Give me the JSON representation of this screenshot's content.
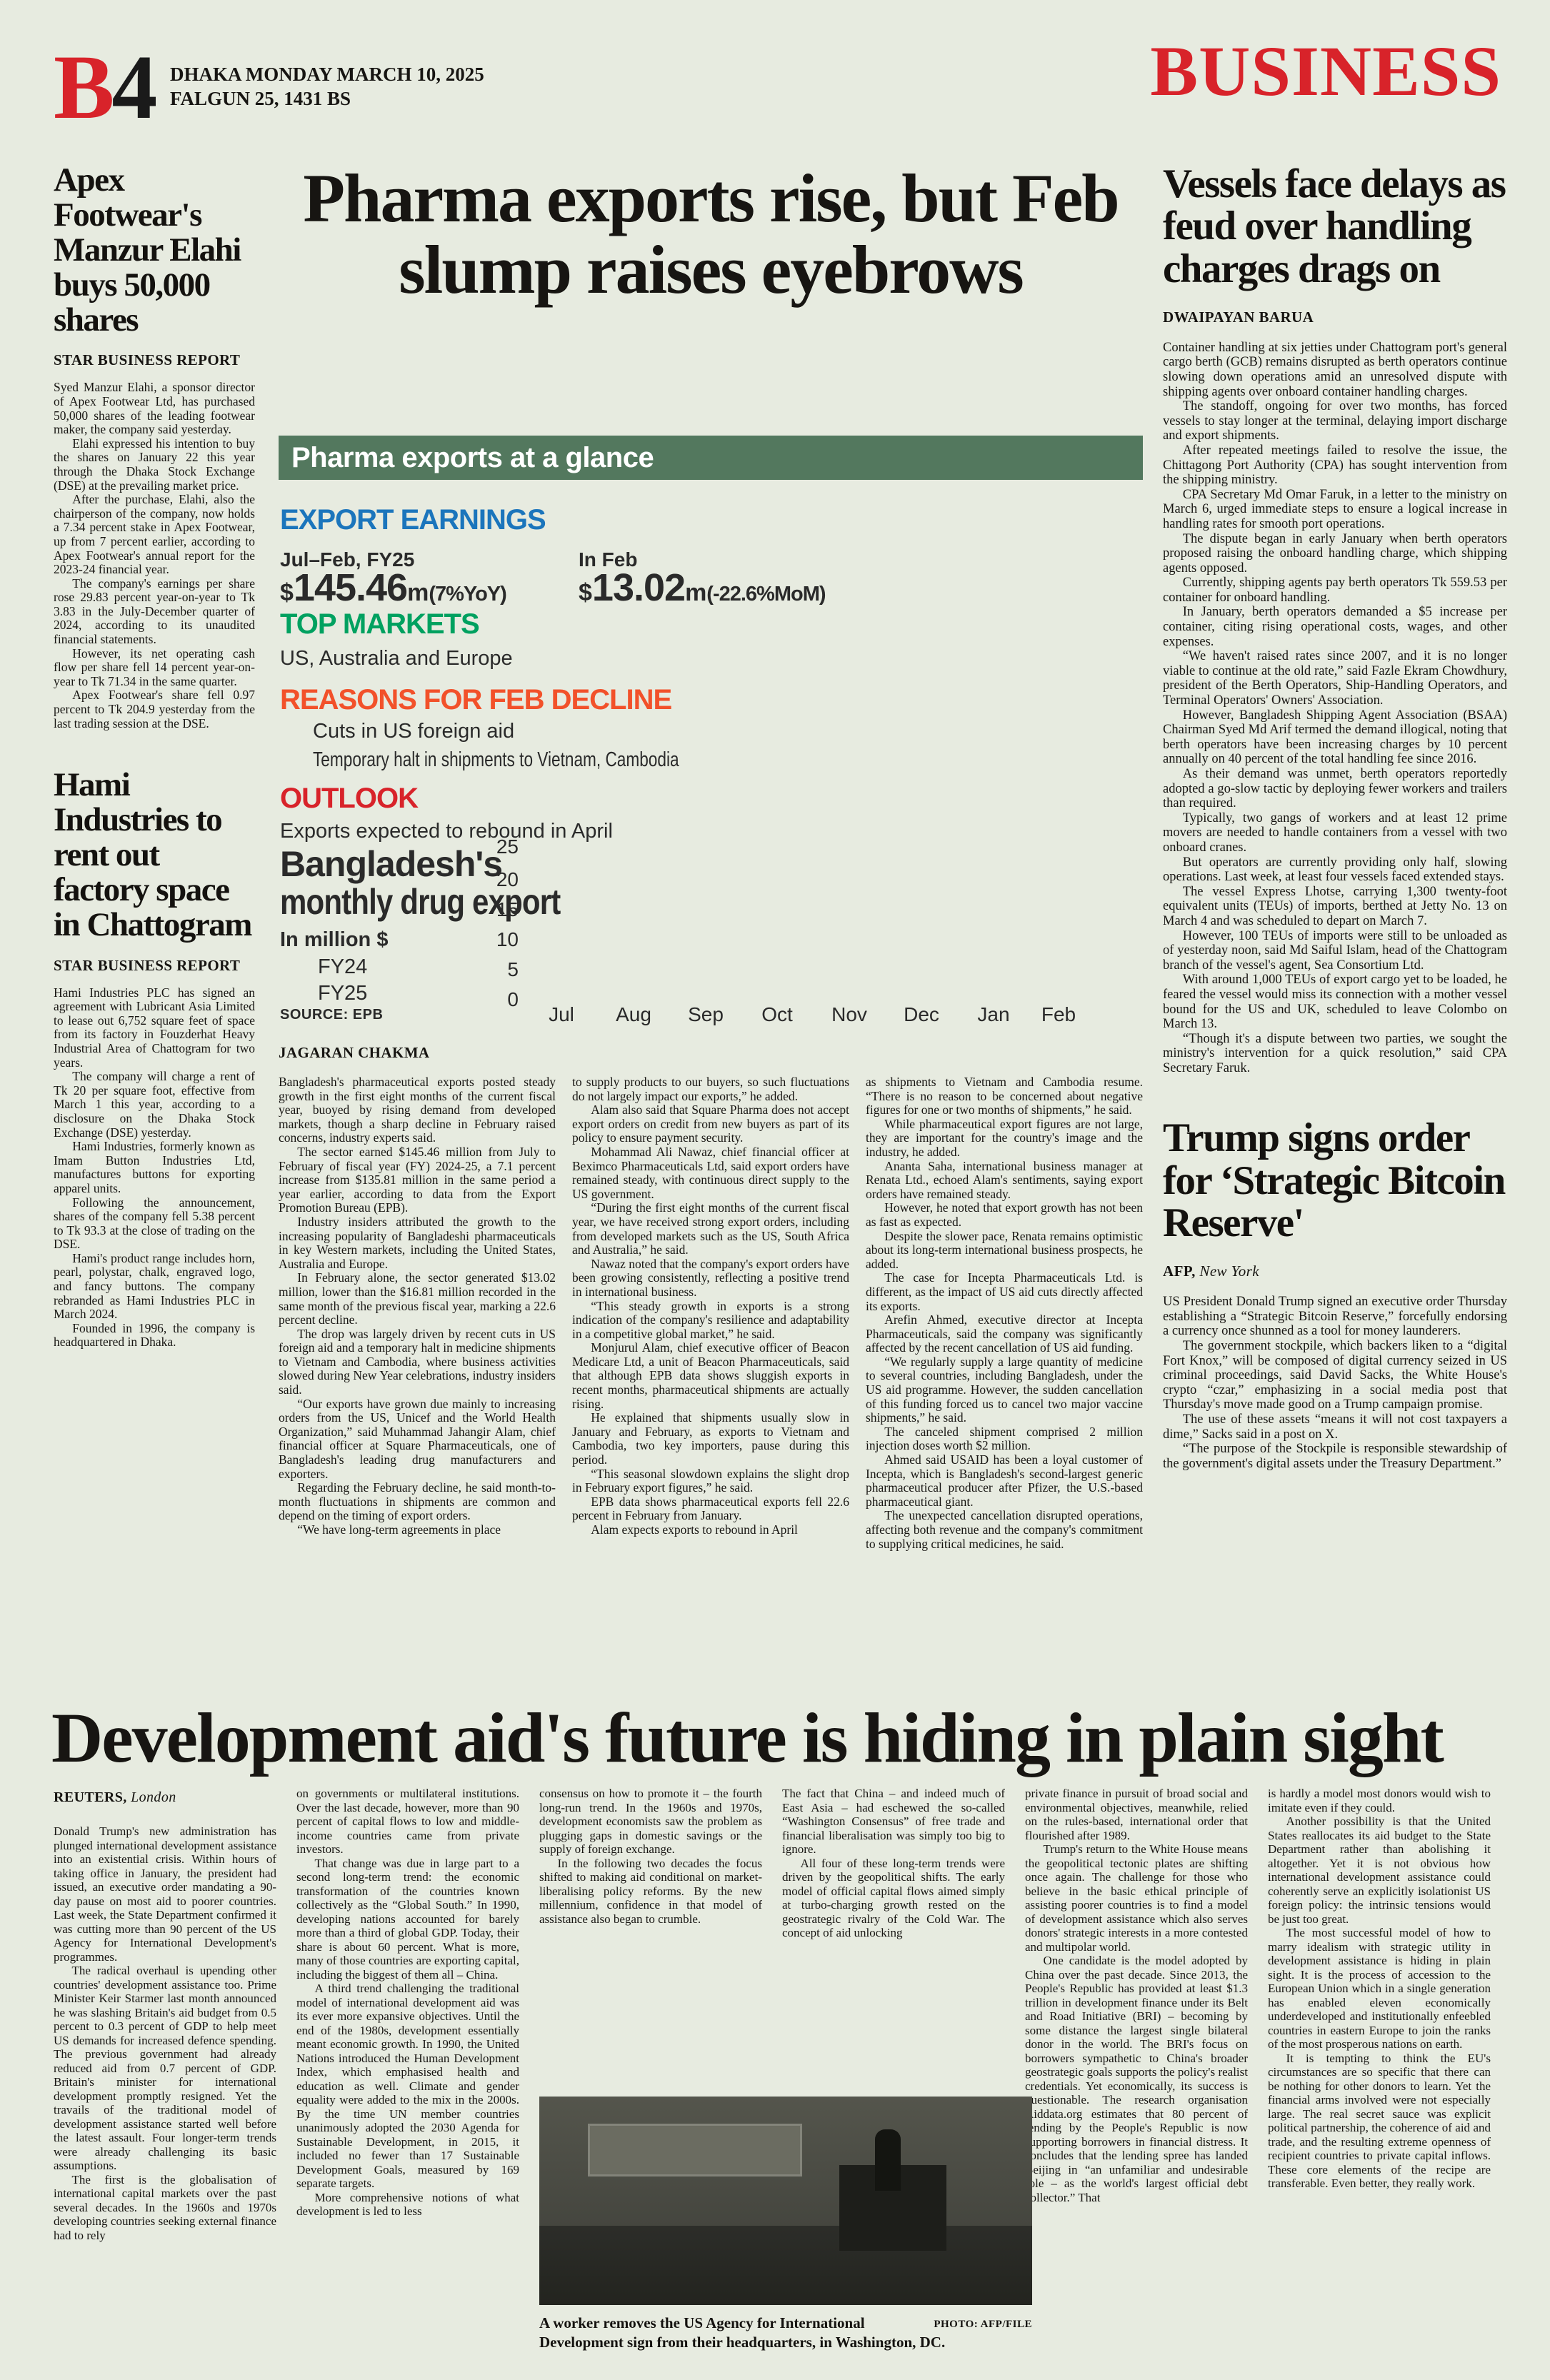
{
  "page": {
    "edition_letter": "B",
    "edition_number": "4",
    "dateline_line1": "DHAKA MONDAY MARCH 10, 2025",
    "dateline_line2": "FALGUN 25, 1431 BS",
    "section": "BUSINESS"
  },
  "apex": {
    "headline": "Apex Footwear's Manzur Elahi buys 50,000 shares",
    "byline": "STAR BUSINESS REPORT",
    "paragraphs": [
      "Syed Manzur Elahi, a sponsor director of Apex Footwear Ltd, has purchased 50,000 shares of the leading footwear maker, the company said yesterday.",
      "Elahi expressed his intention to buy the shares on January 22 this year through the Dhaka Stock Exchange (DSE) at the prevailing market price.",
      "After the purchase, Elahi, also the chairperson of the company, now holds a 7.34 percent stake in Apex Footwear, up from 7 percent earlier, according to Apex Footwear's annual report for the 2023-24 financial year.",
      "The company's earnings per share rose 29.83 percent year-on-year to Tk 3.83 in the July-December quarter of 2024, according to its unaudited financial statements.",
      "However, its net operating cash flow per share fell 14 percent year-on-year to Tk 71.34 in the same quarter.",
      "Apex Footwear's share fell 0.97 percent to Tk 204.9 yesterday from the last trading session at the DSE."
    ]
  },
  "hami": {
    "headline": "Hami Industries to rent out factory space in Chattogram",
    "byline": "STAR BUSINESS REPORT",
    "paragraphs": [
      "Hami Industries PLC has signed an agreement with Lubricant Asia Limited to lease out 6,752 square feet of space from its factory in Fouzderhat Heavy Industrial Area of Chattogram for two years.",
      "The company will charge a rent of Tk 20 per square foot, effective from March 1 this year, according to a disclosure on the Dhaka Stock Exchange (DSE) yesterday.",
      "Hami Industries, formerly known as Imam Button Industries Ltd, manufactures buttons for exporting apparel units.",
      "Following the announcement, shares of the company fell 5.38 percent to Tk 93.3 at the close of trading on the DSE.",
      "Hami's product range includes horn, pearl, polystar, chalk, engraved logo, and fancy buttons. The company rebranded as Hami Industries PLC in March 2024.",
      "Founded in 1996, the company is headquartered in Dhaka."
    ]
  },
  "pharma": {
    "headline": "Pharma exports rise, but Feb slump raises eyebrows",
    "byline": "JAGARAN CHAKMA",
    "col1": [
      "Bangladesh's pharmaceutical exports posted steady growth in the first eight months of the current fiscal year, buoyed by rising demand from developed markets, though a sharp decline in February raised concerns, industry experts said.",
      "The sector earned $145.46 million from July to February of fiscal year (FY) 2024-25, a 7.1 percent increase from $135.81 million in the same period a year earlier, according to data from the Export Promotion Bureau (EPB).",
      "Industry insiders attributed the growth to the increasing popularity of Bangladeshi pharmaceuticals in key Western markets, including the United States, Australia and Europe.",
      "In February alone, the sector generated $13.02 million, lower than the $16.81 million recorded in the same month of the previous fiscal year, marking a 22.6 percent decline.",
      "The drop was largely driven by recent cuts in US foreign aid and a temporary halt in medicine shipments to Vietnam and Cambodia, where business activities slowed during New Year celebrations, industry insiders said.",
      "“Our exports have grown due mainly to increasing orders from the US, Unicef and the World Health Organization,” said Muhammad Jahangir Alam, chief financial officer at Square Pharmaceuticals, one of Bangladesh's leading drug manufacturers and exporters.",
      "Regarding the February decline, he said month-to-month fluctuations in shipments are common and depend on the timing of export orders.",
      "“We have long-term agreements in place"
    ],
    "col2": [
      "to supply products to our buyers, so such fluctuations do not largely impact our exports,” he added.",
      "Alam also said that Square Pharma does not accept export orders on credit from new buyers as part of its policy to ensure payment security.",
      "Mohammad Ali Nawaz, chief financial officer at Beximco Pharmaceuticals Ltd, said export orders have remained steady, with continuous direct supply to the US government.",
      "“During the first eight months of the current fiscal year, we have received strong export orders, including from developed markets such as the US, South Africa and Australia,” he said.",
      "Nawaz noted that the company's export orders have been growing consistently, reflecting a positive trend in international business.",
      "“This steady growth in exports is a strong indication of the company's resilience and adaptability in a competitive global market,” he said.",
      "Monjurul Alam, chief executive officer of Beacon Medicare Ltd, a unit of Beacon Pharmaceuticals, said that although EPB data shows sluggish exports in recent months, pharmaceutical shipments are actually rising.",
      "He explained that shipments usually slow in January and February, as exports to Vietnam and Cambodia, two key importers, pause during this period.",
      "“This seasonal slowdown explains the slight drop in February export figures,” he said.",
      "EPB data shows pharmaceutical exports fell 22.6 percent in February from January.",
      "Alam expects exports to rebound in April"
    ],
    "col3": [
      "as shipments to Vietnam and Cambodia resume. “There is no reason to be concerned about negative figures for one or two months of shipments,” he said.",
      "While pharmaceutical export figures are not large, they are important for the country's image and the industry, he added.",
      "Ananta Saha, international business manager at Renata Ltd., echoed Alam's sentiments, saying export orders have remained steady.",
      "However, he noted that export growth has not been as fast as expected.",
      "Despite the slower pace, Renata remains optimistic about its long-term international business prospects, he added.",
      "The case for Incepta Pharmaceuticals Ltd. is different, as the impact of US aid cuts directly affected its exports.",
      "Arefin Ahmed, executive director at Incepta Pharmaceuticals, said the company was significantly affected by the recent cancellation of US aid funding.",
      "“We regularly supply a large quantity of medicine to several countries, including Bangladesh, under the US aid programme. However, the sudden cancellation of this funding forced us to cancel two major vaccine shipments,” he said.",
      "The canceled shipment comprised 2 million injection doses worth $2 million.",
      "Ahmed said USAID has been a loyal customer of Incepta, which is Bangladesh's second-largest generic pharmaceutical producer after Pfizer, the U.S.-based pharmaceutical giant.",
      "The unexpected cancellation disrupted operations, affecting both revenue and the company's commitment to supplying critical medicines, he said."
    ]
  },
  "infographic": {
    "title": "Pharma exports at a glance",
    "earnings_heading": "EXPORT EARNINGS",
    "earnings": [
      {
        "label": "Jul–Feb, FY25",
        "prefix": "$",
        "num": "145.46",
        "unit": "m",
        "change": "(7%YoY)"
      },
      {
        "label": "In Feb",
        "prefix": "$",
        "num": "13.02",
        "unit": "m",
        "change": "(-22.6%MoM)"
      }
    ],
    "markets_heading": "TOP MARKETS",
    "markets_text": "US, Australia and Europe",
    "reasons_heading": "REASONS FOR FEB DECLINE",
    "reasons": [
      "Cuts in US foreign aid",
      "Temporary halt in shipments to Vietnam, Cambodia"
    ],
    "outlook_heading": "OUTLOOK",
    "outlook_text": "Exports expected to rebound in April",
    "colors": {
      "banner": "#53785e",
      "blue": "#1b75bc",
      "green": "#00a160",
      "orange": "#f2512a",
      "red": "#d8232a"
    }
  },
  "chart_data": {
    "type": "line",
    "title": "Bangladesh's monthly drug export",
    "title_line1": "Bangladesh's",
    "title_line2": "monthly drug export",
    "unit_label": "In million $",
    "categories": [
      "Jul",
      "Aug",
      "Sep",
      "Oct",
      "Nov",
      "Dec",
      "Jan",
      "Feb"
    ],
    "series": [
      {
        "name": "FY24",
        "values": []
      },
      {
        "name": "FY25",
        "values": []
      }
    ],
    "ylim": [
      0,
      25
    ],
    "yticks": [
      25,
      20,
      15,
      10,
      5,
      0
    ],
    "grid": false,
    "legend_position": "left",
    "source": "SOURCE: EPB"
  },
  "vessels": {
    "headline": "Vessels face delays as feud over handling charges drags on",
    "byline": "DWAIPAYAN BARUA",
    "paragraphs": [
      "Container handling at six jetties under Chattogram port's general cargo berth (GCB) remains disrupted as berth operators continue slowing down operations amid an unresolved dispute with shipping agents over onboard container handling charges.",
      "The standoff, ongoing for over two months, has forced vessels to stay longer at the terminal, delaying import discharge and export shipments.",
      "After repeated meetings failed to resolve the issue, the Chittagong Port Authority (CPA) has sought intervention from the shipping ministry.",
      "CPA Secretary Md Omar Faruk, in a letter to the ministry on March 6, urged immediate steps to ensure a logical increase in handling rates for smooth port operations.",
      "The dispute began in early January when berth operators proposed raising the onboard handling charge, which shipping agents opposed.",
      "Currently, shipping agents pay berth operators Tk 559.53 per container for onboard handling.",
      "In January, berth operators demanded a $5 increase per container, citing rising operational costs, wages, and other expenses.",
      "“We haven't raised rates since 2007, and it is no longer viable to continue at the old rate,” said Fazle Ekram Chowdhury, president of the Berth Operators, Ship-Handling Operators, and Terminal Operators' Owners' Association.",
      "However, Bangladesh Shipping Agent Association (BSAA) Chairman Syed Md Arif termed the demand illogical, noting that berth operators have been increasing charges by 10 percent annually on 40 percent of the total handling fee since 2016.",
      "As their demand was unmet, berth operators reportedly adopted a go-slow tactic by deploying fewer workers and trailers than required.",
      "Typically, two gangs of workers and at least 12 prime movers are needed to handle containers from a vessel with two onboard cranes.",
      "But operators are currently providing only half, slowing operations. Last week, at least four vessels faced extended stays.",
      "The vessel Express Lhotse, carrying 1,300 twenty-foot equivalent units (TEUs) of imports, berthed at Jetty No. 13 on March 4 and was scheduled to depart on March 7.",
      "However, 100 TEUs of imports were still to be unloaded as of yesterday noon, said Md Saiful Islam, head of the Chattogram branch of the vessel's agent, Sea Consortium Ltd.",
      "With around 1,000 TEUs of export cargo yet to be loaded, he feared the vessel would miss its connection with a mother vessel bound for the US and UK, scheduled to leave Colombo on March 13.",
      "“Though it's a dispute between two parties, we sought the ministry's intervention for a quick resolution,” said CPA Secretary Faruk."
    ]
  },
  "bitcoin": {
    "headline": "Trump signs order for ‘Strategic Bitcoin Reserve'",
    "byline_agency": "AFP,",
    "byline_location": "New York",
    "paragraphs": [
      "US President Donald Trump signed an executive order Thursday establishing a “Strategic Bitcoin Reserve,” forcefully endorsing a currency once shunned as a tool for money launderers.",
      "The government stockpile, which backers liken to a “digital Fort Knox,” will be composed of digital currency seized in US criminal proceedings, said David Sacks, the White House's crypto “czar,” emphasizing in a social media post that Thursday's move made good on a Trump campaign promise.",
      "The use of these assets “means it will not cost taxpayers a dime,” Sacks said in a post on X.",
      "“The purpose of the Stockpile is responsible stewardship of the government's digital assets under the Treasury Department.”"
    ]
  },
  "aid": {
    "headline": "Development aid's future is hiding in plain sight",
    "byline_agency": "REUTERS,",
    "byline_location": "London",
    "col1": [
      "Donald Trump's new administration has plunged international development assistance into an existential crisis. Within hours of taking office in January, the president had issued, an executive order mandating a 90-day pause on most aid to poorer countries. Last week, the State Department confirmed it was cutting more than 90 percent of the US Agency for International Development's programmes.",
      "The radical overhaul is upending other countries' development assistance too. Prime Minister Keir Starmer last month announced he was slashing Britain's aid budget from 0.5 percent to 0.3 percent of GDP to help meet US demands for increased defence spending. The previous government had already reduced aid from 0.7 percent of GDP. Britain's minister for international development promptly resigned. Yet the travails of the traditional model of development assistance started well before the latest assault. Four longer-term trends were already challenging its basic assumptions.",
      "The first is the globalisation of international capital markets over the past several decades. In the 1960s and 1970s developing countries seeking external finance had to rely"
    ],
    "col2": [
      "on governments or multilateral institutions. Over the last decade, however, more than 90 percent of capital flows to low and middle-income countries came from private investors.",
      "That change was due in large part to a second long-term trend: the economic transformation of the countries known collectively as the “Global South.” In 1990, developing nations accounted for barely more than a third of global GDP. Today, their share is about 60 percent. What is more, many of those countries are exporting capital, including the biggest of them all – China.",
      "A third trend challenging the traditional model of international development aid was its ever more expansive objectives. Until the end of the 1980s, development essentially meant economic growth. In 1990, the United Nations introduced the Human Development Index, which emphasised health and education as well. Climate and gender equality were added to the mix in the 2000s. By the time UN member countries unanimously adopted the 2030 Agenda for Sustainable Development, in 2015, it included no fewer than 17 Sustainable Development Goals, measured by 169 separate targets.",
      "More comprehensive notions of what development is led to less"
    ],
    "col3": [
      "consensus on how to promote it – the fourth long-run trend. In the 1960s and 1970s, development economists saw the problem as plugging gaps in domestic savings or the supply of foreign exchange.",
      "In the following two decades the focus shifted to making aid conditional on market-liberalising policy reforms. By the new millennium, confidence in that model of assistance also began to crumble."
    ],
    "col4": [
      "The fact that China – and indeed much of East Asia – had eschewed the so-called “Washington Consensus” of free trade and financial liberalisation was simply too big to ignore.",
      "All four of these long-term trends were driven by the geopolitical shifts. The early model of official capital flows aimed simply at turbo-charging growth rested on the geostrategic rivalry of the Cold War. The concept of aid unlocking"
    ],
    "col5": [
      "private finance in pursuit of broad social and environmental objectives, meanwhile, relied on the rules-based, international order that flourished after 1989.",
      "Trump's return to the White House means the geopolitical tectonic plates are shifting once again. The challenge for those who believe in the basic ethical principle of assisting poorer countries is to find a model of development assistance which also serves donors' strategic interests in a more contested and multipolar world.",
      "One candidate is the model adopted by China over the past decade. Since 2013, the People's Republic has provided at least $1.3 trillion in development finance under its Belt and Road Initiative (BRI) – becoming by some distance the largest single bilateral donor in the world. The BRI's focus on borrowers sympathetic to China's broader geostrategic goals supports the policy's realist credentials. Yet economically, its success is questionable. The research organisation Aiddata.org estimates that 80 percent of lending by the People's Republic is now supporting borrowers in financial distress. It concludes that the lending spree has landed Beijing in “an unfamiliar and undesirable role – as the world's largest official debt collector.” That"
    ],
    "col6": [
      "is hardly a model most donors would wish to imitate even if they could.",
      "Another possibility is that the United States reallocates its aid budget to the State Department rather than abolishing it altogether. Yet it is not obvious how international development assistance could coherently serve an explicitly isolationist US foreign policy: the intrinsic tensions would be just too great.",
      "The most successful model of how to marry idealism with strategic utility in development assistance is hiding in plain sight. It is the process of accession to the European Union which in a single generation has enabled eleven economically underdeveloped and institutionally enfeebled countries in eastern Europe to join the ranks of the most prosperous nations on earth.",
      "It is tempting to think the EU's circumstances are so specific that there can be nothing for other donors to learn. Yet the financial arms involved were not especially large. The real secret sauce was explicit political partnership, the coherence of aid and trade, and the resulting extreme openness of recipient countries to private capital inflows. These core elements of the recipe are transferable. Even better, they really work."
    ],
    "caption": "A worker removes the US Agency for International Development sign from their headquarters, in Washington, DC.",
    "photo_credit": "PHOTO: AFP/FILE"
  }
}
